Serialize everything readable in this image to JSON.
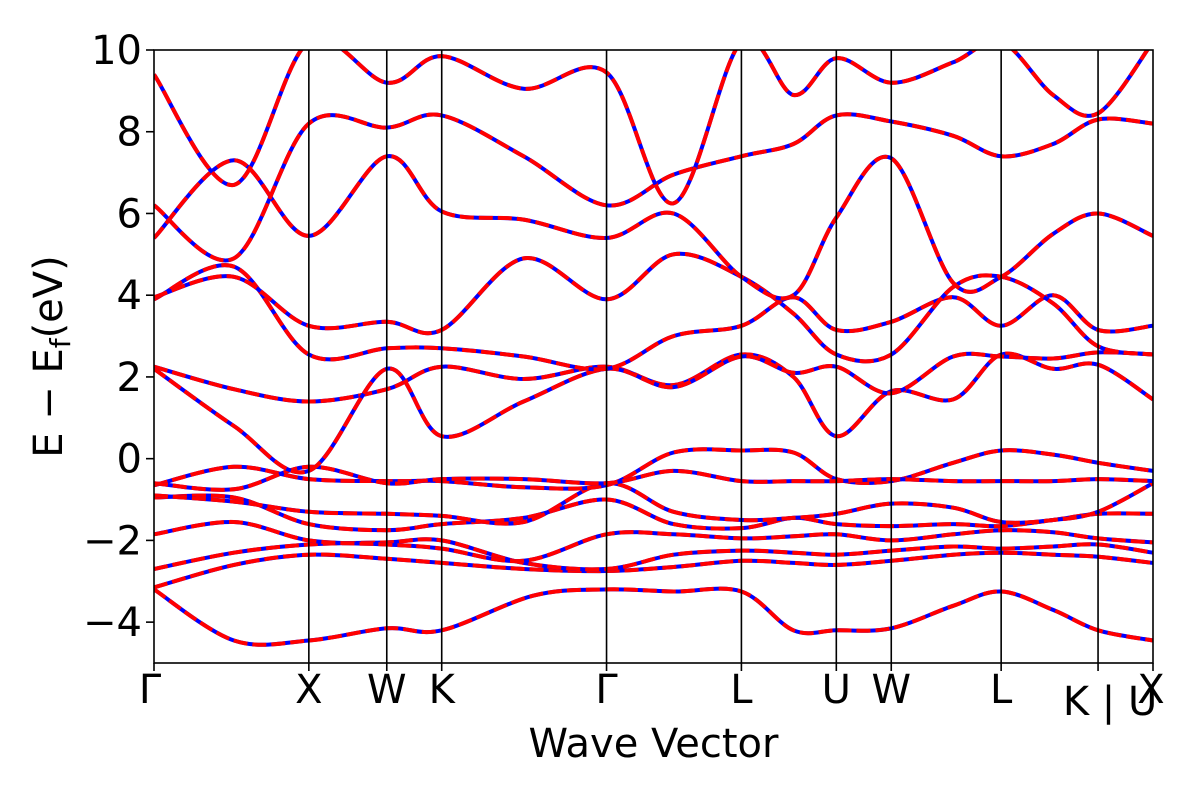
{
  "chart_data": {
    "type": "line",
    "title": "",
    "xlabel": "Wave Vector",
    "ylabel_main": "E − E",
    "ylabel_sub": "f",
    "ylabel_unit": "(eV)",
    "ylim": [
      -5,
      10
    ],
    "yticks": [
      -4,
      -2,
      0,
      2,
      4,
      6,
      8,
      10
    ],
    "ytick_labels": [
      "−4",
      "−2",
      "0",
      "2",
      "4",
      "6",
      "8",
      "10"
    ],
    "xlim": [
      0,
      1
    ],
    "kpoints": [
      {
        "label": "Γ",
        "x": 0.0
      },
      {
        "label": "X",
        "x": 0.155
      },
      {
        "label": "W",
        "x": 0.233
      },
      {
        "label": "K",
        "x": 0.288
      },
      {
        "label": "Γ",
        "x": 0.453
      },
      {
        "label": "L",
        "x": 0.588
      },
      {
        "label": "U",
        "x": 0.683
      },
      {
        "label": "W",
        "x": 0.738
      },
      {
        "label": "L",
        "x": 0.848
      },
      {
        "label": "K | U",
        "x": 0.945
      },
      {
        "label": "X",
        "x": 1.0
      }
    ],
    "series_styles": [
      {
        "color": "#0000ff",
        "dash": "solid"
      },
      {
        "color": "#ff0000",
        "dash": "dashed"
      }
    ],
    "grid": false,
    "legend": "none",
    "bands": [
      [
        [
          0,
          -3.2
        ],
        [
          0.08,
          -4.45
        ],
        [
          0.155,
          -4.45
        ],
        [
          0.233,
          -4.15
        ],
        [
          0.288,
          -4.2
        ],
        [
          0.38,
          -3.35
        ],
        [
          0.453,
          -3.2
        ],
        [
          0.52,
          -3.25
        ],
        [
          0.588,
          -3.25
        ],
        [
          0.64,
          -4.2
        ],
        [
          0.683,
          -4.2
        ],
        [
          0.738,
          -4.15
        ],
        [
          0.8,
          -3.6
        ],
        [
          0.848,
          -3.25
        ],
        [
          0.9,
          -3.7
        ],
        [
          0.945,
          -4.2
        ],
        [
          1.0,
          -4.45
        ]
      ],
      [
        [
          0,
          -3.15
        ],
        [
          0.08,
          -2.6
        ],
        [
          0.155,
          -2.35
        ],
        [
          0.233,
          -2.45
        ],
        [
          0.288,
          -2.55
        ],
        [
          0.37,
          -2.7
        ],
        [
          0.453,
          -2.75
        ],
        [
          0.52,
          -2.65
        ],
        [
          0.588,
          -2.5
        ],
        [
          0.64,
          -2.55
        ],
        [
          0.683,
          -2.6
        ],
        [
          0.738,
          -2.5
        ],
        [
          0.8,
          -2.35
        ],
        [
          0.848,
          -2.3
        ],
        [
          0.9,
          -2.35
        ],
        [
          0.945,
          -2.4
        ],
        [
          1.0,
          -2.55
        ]
      ],
      [
        [
          0,
          -2.7
        ],
        [
          0.08,
          -2.3
        ],
        [
          0.155,
          -2.1
        ],
        [
          0.233,
          -2.05
        ],
        [
          0.288,
          -2.0
        ],
        [
          0.37,
          -2.55
        ],
        [
          0.453,
          -2.7
        ],
        [
          0.52,
          -2.35
        ],
        [
          0.588,
          -2.25
        ],
        [
          0.64,
          -2.3
        ],
        [
          0.683,
          -2.35
        ],
        [
          0.738,
          -2.25
        ],
        [
          0.8,
          -2.15
        ],
        [
          0.848,
          -2.2
        ],
        [
          0.9,
          -2.15
        ],
        [
          0.945,
          -2.1
        ],
        [
          1.0,
          -2.3
        ]
      ],
      [
        [
          0,
          -1.85
        ],
        [
          0.08,
          -1.55
        ],
        [
          0.155,
          -2.0
        ],
        [
          0.233,
          -2.1
        ],
        [
          0.288,
          -2.2
        ],
        [
          0.37,
          -2.5
        ],
        [
          0.453,
          -1.85
        ],
        [
          0.52,
          -1.85
        ],
        [
          0.588,
          -1.95
        ],
        [
          0.64,
          -1.9
        ],
        [
          0.683,
          -1.85
        ],
        [
          0.738,
          -2.0
        ],
        [
          0.8,
          -1.85
        ],
        [
          0.848,
          -1.75
        ],
        [
          0.9,
          -1.8
        ],
        [
          0.945,
          -1.95
        ],
        [
          1.0,
          -2.05
        ]
      ],
      [
        [
          0,
          -0.95
        ],
        [
          0.08,
          -0.95
        ],
        [
          0.155,
          -1.6
        ],
        [
          0.233,
          -1.75
        ],
        [
          0.288,
          -1.6
        ],
        [
          0.37,
          -1.45
        ],
        [
          0.453,
          -1.0
        ],
        [
          0.52,
          -1.6
        ],
        [
          0.588,
          -1.7
        ],
        [
          0.64,
          -1.45
        ],
        [
          0.683,
          -1.6
        ],
        [
          0.738,
          -1.65
        ],
        [
          0.8,
          -1.6
        ],
        [
          0.848,
          -1.65
        ],
        [
          0.9,
          -1.5
        ],
        [
          0.945,
          -1.35
        ],
        [
          1.0,
          -1.35
        ]
      ],
      [
        [
          0,
          -0.9
        ],
        [
          0.08,
          -1.05
        ],
        [
          0.155,
          -1.3
        ],
        [
          0.233,
          -1.35
        ],
        [
          0.288,
          -1.4
        ],
        [
          0.37,
          -1.55
        ],
        [
          0.453,
          -0.6
        ],
        [
          0.52,
          -1.3
        ],
        [
          0.588,
          -1.5
        ],
        [
          0.64,
          -1.45
        ],
        [
          0.683,
          -1.35
        ],
        [
          0.738,
          -1.1
        ],
        [
          0.8,
          -1.2
        ],
        [
          0.848,
          -1.55
        ],
        [
          0.9,
          -1.5
        ],
        [
          0.945,
          -1.3
        ],
        [
          1.0,
          -0.6
        ]
      ],
      [
        [
          0,
          -0.65
        ],
        [
          0.08,
          -0.2
        ],
        [
          0.155,
          -0.5
        ],
        [
          0.233,
          -0.55
        ],
        [
          0.288,
          -0.55
        ],
        [
          0.37,
          -0.7
        ],
        [
          0.453,
          -0.65
        ],
        [
          0.52,
          0.15
        ],
        [
          0.588,
          0.2
        ],
        [
          0.64,
          0.15
        ],
        [
          0.683,
          -0.5
        ],
        [
          0.738,
          -0.55
        ],
        [
          0.8,
          -0.1
        ],
        [
          0.848,
          0.2
        ],
        [
          0.9,
          0.1
        ],
        [
          0.945,
          -0.1
        ],
        [
          1.0,
          -0.3
        ]
      ],
      [
        [
          0,
          -0.6
        ],
        [
          0.08,
          -0.75
        ],
        [
          0.155,
          -0.2
        ],
        [
          0.233,
          -0.6
        ],
        [
          0.288,
          -0.5
        ],
        [
          0.37,
          -0.5
        ],
        [
          0.453,
          -0.6
        ],
        [
          0.52,
          -0.3
        ],
        [
          0.588,
          -0.55
        ],
        [
          0.64,
          -0.55
        ],
        [
          0.683,
          -0.55
        ],
        [
          0.738,
          -0.5
        ],
        [
          0.8,
          -0.55
        ],
        [
          0.848,
          -0.55
        ],
        [
          0.9,
          -0.55
        ],
        [
          0.945,
          -0.5
        ],
        [
          1.0,
          -0.55
        ]
      ],
      [
        [
          0,
          2.25
        ],
        [
          0.08,
          1.7
        ],
        [
          0.155,
          1.4
        ],
        [
          0.233,
          1.7
        ],
        [
          0.288,
          2.25
        ],
        [
          0.37,
          1.95
        ],
        [
          0.453,
          2.25
        ],
        [
          0.52,
          1.8
        ],
        [
          0.588,
          2.55
        ],
        [
          0.64,
          2.0
        ],
        [
          0.683,
          0.55
        ],
        [
          0.738,
          1.65
        ],
        [
          0.8,
          1.45
        ],
        [
          0.848,
          2.55
        ],
        [
          0.9,
          2.2
        ],
        [
          0.945,
          2.3
        ],
        [
          1.0,
          1.45
        ]
      ],
      [
        [
          0,
          2.2
        ],
        [
          0.08,
          0.8
        ],
        [
          0.155,
          -0.3
        ],
        [
          0.233,
          2.2
        ],
        [
          0.288,
          0.55
        ],
        [
          0.37,
          1.4
        ],
        [
          0.453,
          2.2
        ],
        [
          0.52,
          1.75
        ],
        [
          0.588,
          2.5
        ],
        [
          0.64,
          2.1
        ],
        [
          0.683,
          2.25
        ],
        [
          0.738,
          1.6
        ],
        [
          0.8,
          2.5
        ],
        [
          0.848,
          2.5
        ],
        [
          0.9,
          2.45
        ],
        [
          0.945,
          2.6
        ],
        [
          1.0,
          2.55
        ]
      ],
      [
        [
          0,
          3.9
        ],
        [
          0.08,
          4.7
        ],
        [
          0.155,
          2.55
        ],
        [
          0.233,
          2.7
        ],
        [
          0.288,
          2.7
        ],
        [
          0.37,
          2.5
        ],
        [
          0.453,
          2.2
        ],
        [
          0.52,
          3.0
        ],
        [
          0.588,
          3.25
        ],
        [
          0.64,
          3.95
        ],
        [
          0.683,
          3.15
        ],
        [
          0.738,
          3.35
        ],
        [
          0.8,
          3.95
        ],
        [
          0.848,
          3.25
        ],
        [
          0.9,
          4.0
        ],
        [
          0.945,
          3.15
        ],
        [
          1.0,
          3.25
        ]
      ],
      [
        [
          0,
          3.95
        ],
        [
          0.08,
          4.45
        ],
        [
          0.155,
          3.25
        ],
        [
          0.233,
          3.35
        ],
        [
          0.288,
          3.15
        ],
        [
          0.37,
          4.9
        ],
        [
          0.453,
          3.9
        ],
        [
          0.52,
          5.0
        ],
        [
          0.588,
          4.45
        ],
        [
          0.64,
          3.55
        ],
        [
          0.683,
          2.55
        ],
        [
          0.738,
          2.55
        ],
        [
          0.8,
          4.2
        ],
        [
          0.848,
          4.45
        ],
        [
          0.9,
          3.8
        ],
        [
          0.945,
          2.75
        ],
        [
          1.0,
          2.55
        ]
      ],
      [
        [
          0,
          5.4
        ],
        [
          0.08,
          7.3
        ],
        [
          0.155,
          5.45
        ],
        [
          0.233,
          7.4
        ],
        [
          0.288,
          6.05
        ],
        [
          0.37,
          5.85
        ],
        [
          0.453,
          5.4
        ],
        [
          0.52,
          6.0
        ],
        [
          0.588,
          4.45
        ],
        [
          0.64,
          4.0
        ],
        [
          0.683,
          5.9
        ],
        [
          0.738,
          7.35
        ],
        [
          0.8,
          4.3
        ],
        [
          0.848,
          4.45
        ],
        [
          0.9,
          5.5
        ],
        [
          0.945,
          6.0
        ],
        [
          1.0,
          5.45
        ]
      ],
      [
        [
          0,
          6.2
        ],
        [
          0.08,
          4.9
        ],
        [
          0.155,
          8.2
        ],
        [
          0.233,
          8.1
        ],
        [
          0.288,
          8.4
        ],
        [
          0.37,
          7.4
        ],
        [
          0.453,
          6.2
        ],
        [
          0.52,
          6.95
        ],
        [
          0.588,
          7.4
        ],
        [
          0.64,
          7.7
        ],
        [
          0.683,
          8.4
        ],
        [
          0.738,
          8.25
        ],
        [
          0.8,
          7.9
        ],
        [
          0.848,
          7.4
        ],
        [
          0.9,
          7.7
        ],
        [
          0.945,
          8.3
        ],
        [
          1.0,
          8.2
        ]
      ],
      [
        [
          0,
          9.4
        ],
        [
          0.08,
          6.7
        ],
        [
          0.155,
          10.2
        ],
        [
          0.233,
          9.2
        ],
        [
          0.288,
          9.85
        ],
        [
          0.37,
          9.05
        ],
        [
          0.453,
          9.45
        ],
        [
          0.52,
          6.25
        ],
        [
          0.588,
          10.2
        ],
        [
          0.64,
          8.9
        ],
        [
          0.683,
          9.8
        ],
        [
          0.738,
          9.2
        ],
        [
          0.8,
          9.7
        ],
        [
          0.848,
          10.2
        ],
        [
          0.9,
          8.9
        ],
        [
          0.945,
          8.45
        ],
        [
          1.0,
          10.2
        ]
      ]
    ]
  }
}
